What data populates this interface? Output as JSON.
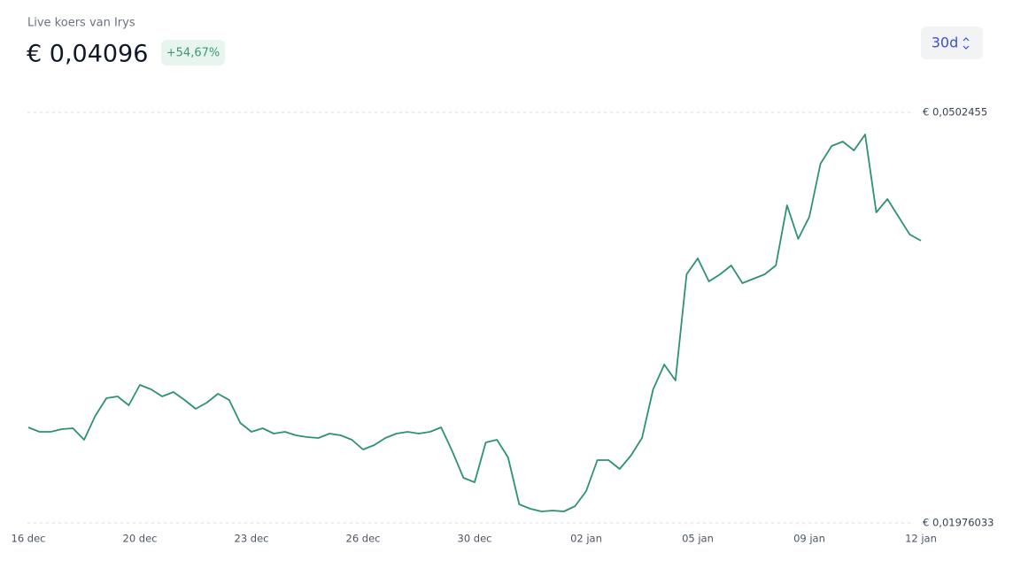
{
  "header": {
    "label": "Live koers van Irys",
    "price": "€ 0,04096",
    "change": "+54,67%",
    "period": "30d"
  },
  "chart_data": {
    "type": "line",
    "color": "#2e9270",
    "xticks": [
      "16 dec",
      "20 dec",
      "23 dec",
      "26 dec",
      "30 dec",
      "02 jan",
      "05 jan",
      "09 jan",
      "12 jan"
    ],
    "ylim": [
      0.01976033,
      0.0502455
    ],
    "yticks": [
      {
        "value": 0.0502455,
        "label": "€ 0,0502455"
      },
      {
        "value": 0.01976033,
        "label": "€ 0,01976033"
      }
    ],
    "grid": true,
    "values": [
      0.026856,
      0.026527,
      0.026527,
      0.026725,
      0.026791,
      0.025937,
      0.027711,
      0.029025,
      0.029156,
      0.028499,
      0.03001,
      0.029681,
      0.029156,
      0.029485,
      0.028893,
      0.028236,
      0.028696,
      0.029353,
      0.028893,
      0.027185,
      0.026527,
      0.026791,
      0.026397,
      0.026527,
      0.026265,
      0.026134,
      0.026068,
      0.026397,
      0.026265,
      0.025937,
      0.025214,
      0.025542,
      0.026068,
      0.026397,
      0.026527,
      0.026397,
      0.026527,
      0.026856,
      0.025083,
      0.023112,
      0.022783,
      0.02574,
      0.025937,
      0.024623,
      0.021141,
      0.020812,
      0.020615,
      0.020681,
      0.020615,
      0.021009,
      0.022126,
      0.024426,
      0.024426,
      0.023769,
      0.024754,
      0.026068,
      0.029681,
      0.031521,
      0.030339,
      0.038223,
      0.039405,
      0.037697,
      0.038223,
      0.03888,
      0.037566,
      0.037894,
      0.038223,
      0.03888,
      0.043347,
      0.040851,
      0.042493,
      0.046435,
      0.047749,
      0.048078,
      0.047421,
      0.048603,
      0.042822,
      0.043807,
      0.042493,
      0.041179,
      0.040719
    ]
  }
}
